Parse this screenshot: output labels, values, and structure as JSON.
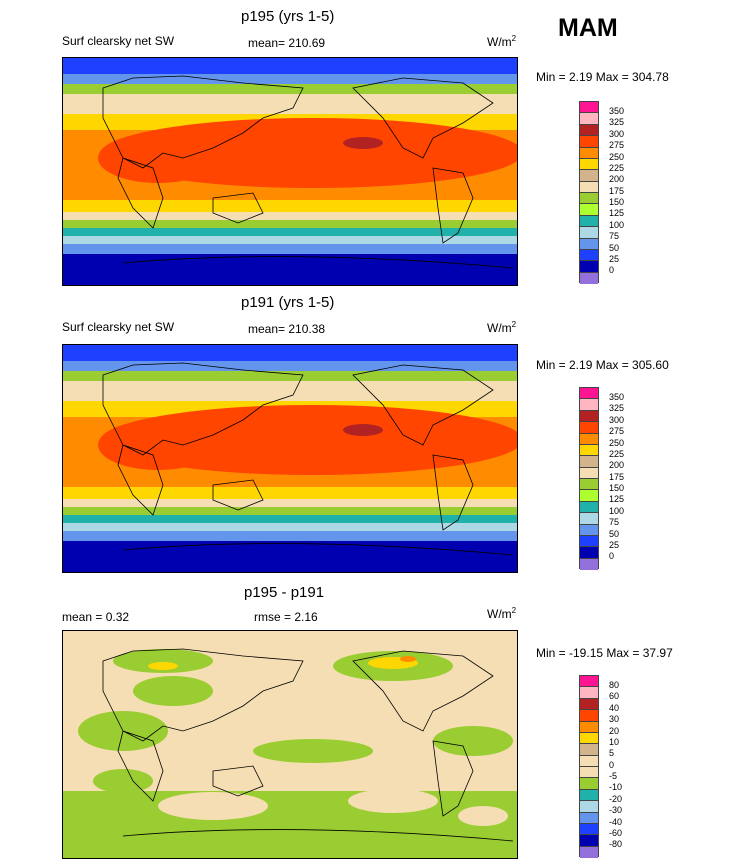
{
  "season": "MAM",
  "panels": [
    {
      "title": "p195 (yrs 1-5)",
      "left_label": "Surf clearsky net SW",
      "center_label": "mean= 210.69",
      "units_base": "W/m",
      "units_exp": "2",
      "minmax": "Min =   2.19 Max = 304.78",
      "colorbar_labels": [
        "350",
        "325",
        "300",
        "275",
        "250",
        "225",
        "200",
        "175",
        "150",
        "125",
        "100",
        "75",
        "50",
        "25",
        "0"
      ],
      "colorbar_colors": [
        "#ff1493",
        "#ffb6c1",
        "#b22222",
        "#ff4500",
        "#ff8c00",
        "#ffd700",
        "#d2b48c",
        "#f5deb3",
        "#9acd32",
        "#adff2f",
        "#20b2aa",
        "#add8e6",
        "#6495ed",
        "#1e40ff",
        "#0000b0",
        "#9370db"
      ]
    },
    {
      "title": "p191 (yrs 1-5)",
      "left_label": "Surf clearsky net SW",
      "center_label": "mean= 210.38",
      "units_base": "W/m",
      "units_exp": "2",
      "minmax": "Min =   2.19 Max = 305.60",
      "colorbar_labels": [
        "350",
        "325",
        "300",
        "275",
        "250",
        "225",
        "200",
        "175",
        "150",
        "125",
        "100",
        "75",
        "50",
        "25",
        "0"
      ],
      "colorbar_colors": [
        "#ff1493",
        "#ffb6c1",
        "#b22222",
        "#ff4500",
        "#ff8c00",
        "#ffd700",
        "#d2b48c",
        "#f5deb3",
        "#9acd32",
        "#adff2f",
        "#20b2aa",
        "#add8e6",
        "#6495ed",
        "#1e40ff",
        "#0000b0",
        "#9370db"
      ]
    },
    {
      "title": "p195 - p191",
      "left_label": "mean =   0.32",
      "center_label": "rmse =   2.16",
      "units_base": "W/m",
      "units_exp": "2",
      "minmax": "Min = -19.15 Max =  37.97",
      "colorbar_labels": [
        "80",
        "60",
        "40",
        "30",
        "20",
        "10",
        "5",
        "0",
        "-5",
        "-10",
        "-20",
        "-30",
        "-40",
        "-60",
        "-80"
      ],
      "colorbar_colors": [
        "#ff1493",
        "#ffb6c1",
        "#b22222",
        "#ff4500",
        "#ff8c00",
        "#ffd700",
        "#d2b48c",
        "#f5deb3",
        "#f5deb3",
        "#9acd32",
        "#20b2aa",
        "#add8e6",
        "#6495ed",
        "#1e40ff",
        "#0000b0",
        "#9370db"
      ]
    }
  ]
}
